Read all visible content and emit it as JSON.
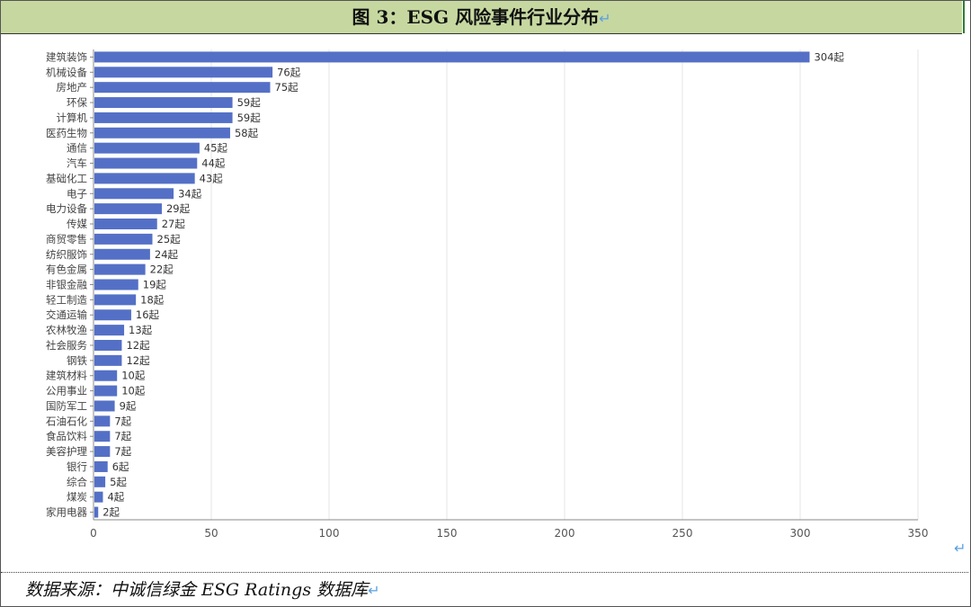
{
  "title": "图 3：ESG 风险事件行业分布",
  "source": "数据来源：中诚信绿金 ESG Ratings 数据库",
  "para_mark": "↵",
  "colors": {
    "bar": "#5470c6",
    "title_bg": "#c6d8a0",
    "grid": "#e6e6e6",
    "axis": "#888888"
  },
  "chart_data": {
    "type": "bar",
    "orientation": "horizontal",
    "title": "",
    "xlabel": "",
    "ylabel": "",
    "xlim": [
      0,
      350
    ],
    "xticks": [
      0,
      50,
      100,
      150,
      200,
      250,
      300,
      350
    ],
    "grid": true,
    "value_suffix": "起",
    "categories": [
      "建筑装饰",
      "机械设备",
      "房地产",
      "环保",
      "计算机",
      "医药生物",
      "通信",
      "汽车",
      "基础化工",
      "电子",
      "电力设备",
      "传媒",
      "商贸零售",
      "纺织服饰",
      "有色金属",
      "非银金融",
      "轻工制造",
      "交通运输",
      "农林牧渔",
      "社会服务",
      "钢铁",
      "建筑材料",
      "公用事业",
      "国防军工",
      "石油石化",
      "食品饮料",
      "美容护理",
      "银行",
      "综合",
      "煤炭",
      "家用电器"
    ],
    "values": [
      304,
      76,
      75,
      59,
      59,
      58,
      45,
      44,
      43,
      34,
      29,
      27,
      25,
      24,
      22,
      19,
      18,
      16,
      13,
      12,
      12,
      10,
      10,
      9,
      7,
      7,
      7,
      6,
      5,
      4,
      2
    ]
  }
}
